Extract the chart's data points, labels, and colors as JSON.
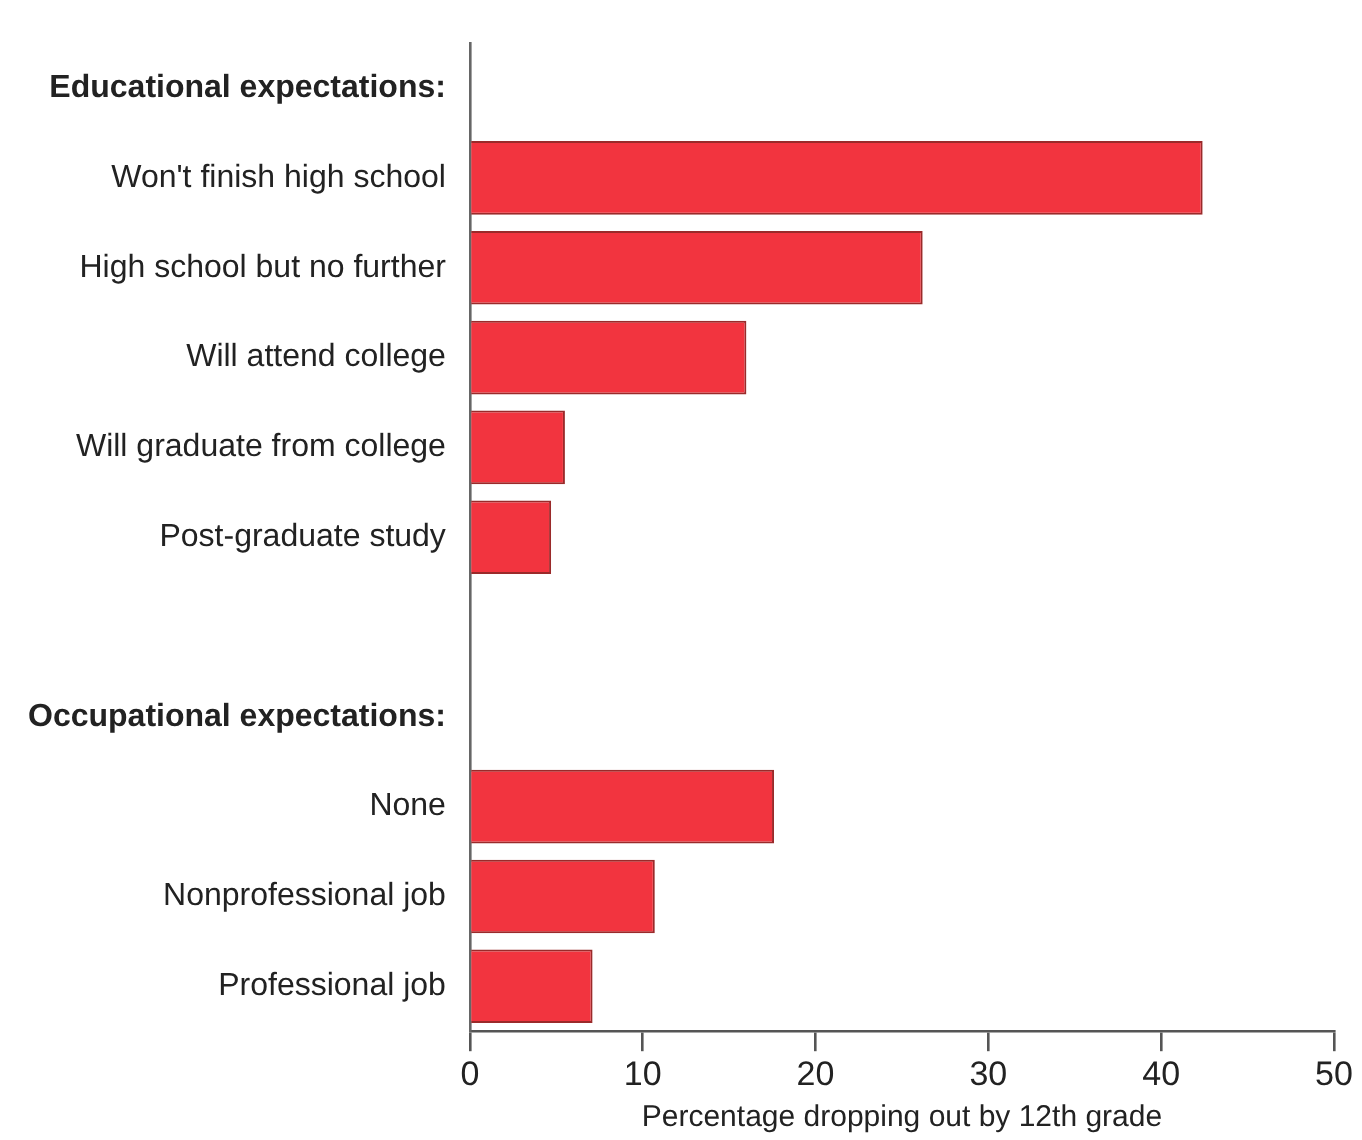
{
  "chart_data": {
    "type": "bar",
    "orientation": "horizontal",
    "xlabel": "Percentage dropping out by 12th grade",
    "annotations": [
      "Educational expectations:",
      "Occupational expectations:"
    ],
    "categories": [
      null,
      "Won't finish high school",
      "High school but no further",
      "Will attend college",
      "Will graduate from college",
      "Post-graduate study",
      null,
      null,
      "None",
      "Nonprofessional job",
      "Professional job"
    ],
    "values": [
      null,
      42.4,
      26.2,
      16.0,
      5.5,
      4.7,
      null,
      null,
      17.6,
      10.7,
      7.1
    ],
    "color": "#f2343f",
    "xlim": [
      0,
      50
    ],
    "xticks": [
      0,
      10,
      20,
      30,
      40,
      50
    ],
    "grid": false,
    "legend": false
  }
}
